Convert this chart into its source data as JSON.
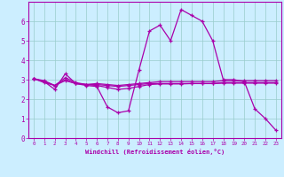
{
  "bg_color": "#cceeff",
  "line_color": "#aa00aa",
  "grid_color": "#99cccc",
  "xlabel": "Windchill (Refroidissement éolien,°C)",
  "xlim": [
    -0.5,
    23.5
  ],
  "ylim": [
    0,
    7
  ],
  "xticks": [
    0,
    1,
    2,
    3,
    4,
    5,
    6,
    7,
    8,
    9,
    10,
    11,
    12,
    13,
    14,
    15,
    16,
    17,
    18,
    19,
    20,
    21,
    22,
    23
  ],
  "yticks": [
    0,
    1,
    2,
    3,
    4,
    5,
    6
  ],
  "series": [
    [
      3.05,
      2.9,
      2.5,
      3.3,
      2.8,
      2.7,
      2.65,
      1.6,
      1.3,
      1.4,
      3.5,
      5.5,
      5.8,
      5.0,
      6.6,
      6.3,
      6.0,
      5.0,
      3.0,
      3.0,
      2.9,
      1.5,
      1.0,
      0.4
    ],
    [
      3.05,
      2.85,
      2.7,
      3.1,
      2.85,
      2.75,
      2.8,
      2.75,
      2.7,
      2.75,
      2.8,
      2.85,
      2.9,
      2.9,
      2.9,
      2.9,
      2.9,
      2.9,
      2.95,
      2.95,
      2.95,
      2.95,
      2.95,
      2.95
    ],
    [
      3.05,
      2.9,
      2.7,
      2.95,
      2.8,
      2.75,
      2.75,
      2.7,
      2.65,
      2.7,
      2.75,
      2.8,
      2.8,
      2.8,
      2.8,
      2.8,
      2.8,
      2.8,
      2.85,
      2.85,
      2.85,
      2.85,
      2.85,
      2.85
    ],
    [
      3.05,
      2.95,
      2.7,
      3.0,
      2.8,
      2.75,
      2.7,
      2.6,
      2.5,
      2.55,
      2.65,
      2.75,
      2.78,
      2.78,
      2.78,
      2.8,
      2.8,
      2.8,
      2.82,
      2.82,
      2.82,
      2.82,
      2.82,
      2.82
    ]
  ]
}
